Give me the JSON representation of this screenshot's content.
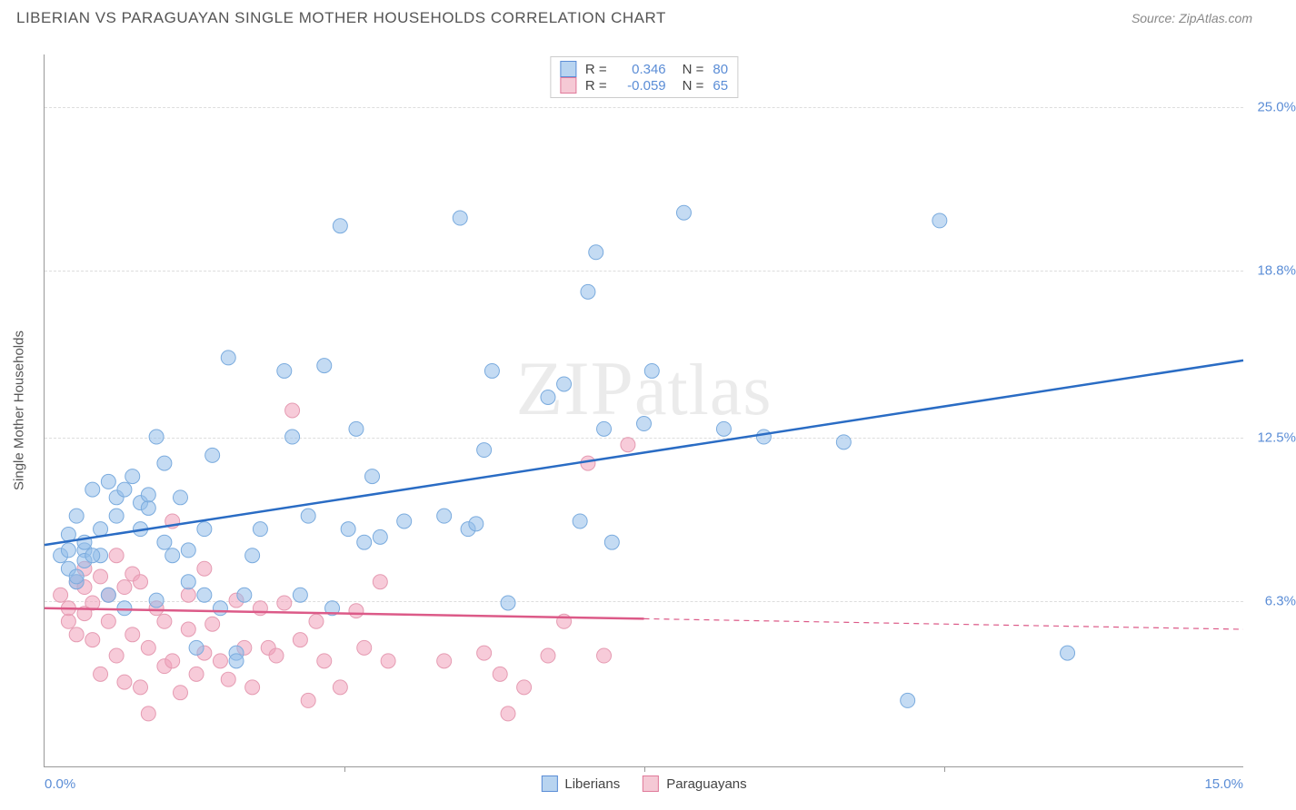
{
  "title": "LIBERIAN VS PARAGUAYAN SINGLE MOTHER HOUSEHOLDS CORRELATION CHART",
  "source_label": "Source: ",
  "source_name": "ZipAtlas.com",
  "y_axis_label": "Single Mother Households",
  "watermark_text": "ZIPatlas",
  "chart": {
    "type": "scatter",
    "background_color": "#ffffff",
    "grid_color": "#dddddd",
    "axis_color": "#999999",
    "tick_label_color": "#5b8dd6",
    "text_color": "#555555",
    "xlim": [
      0.0,
      15.0
    ],
    "ylim": [
      0.0,
      27.0
    ],
    "x_tick_labels": [
      "0.0%",
      "15.0%"
    ],
    "y_ticks": [
      {
        "value": 6.3,
        "label": "6.3%"
      },
      {
        "value": 12.5,
        "label": "12.5%"
      },
      {
        "value": 18.8,
        "label": "18.8%"
      },
      {
        "value": 25.0,
        "label": "25.0%"
      }
    ],
    "x_tick_positions": [
      3.75,
      7.5,
      11.25
    ],
    "marker_radius": 8,
    "marker_opacity": 0.55,
    "line_width_main": 2.5,
    "line_width_dash": 1.2,
    "legend_top": [
      {
        "swatch_fill": "#b8d4f0",
        "swatch_border": "#5b8dd6",
        "r_label": "R =",
        "r_value": "0.346",
        "n_label": "N =",
        "n_value": "80"
      },
      {
        "swatch_fill": "#f5c9d5",
        "swatch_border": "#e07a9a",
        "r_label": "R =",
        "r_value": "-0.059",
        "n_label": "N =",
        "n_value": "65"
      }
    ],
    "legend_bottom": [
      {
        "swatch_fill": "#b8d4f0",
        "swatch_border": "#5b8dd6",
        "label": "Liberians"
      },
      {
        "swatch_fill": "#f5c9d5",
        "swatch_border": "#e07a9a",
        "label": "Paraguayans"
      }
    ],
    "series": [
      {
        "name": "Liberians",
        "color_fill": "rgba(147,190,234,0.55)",
        "color_stroke": "#7aabde",
        "trend_color": "#2a6cc4",
        "trend_solid": {
          "x1": 0.0,
          "y1": 8.4,
          "x2": 15.0,
          "y2": 15.4
        },
        "trend_dash": null,
        "points": [
          [
            0.2,
            8.0
          ],
          [
            0.3,
            8.2
          ],
          [
            0.3,
            7.5
          ],
          [
            0.3,
            8.8
          ],
          [
            0.4,
            7.0
          ],
          [
            0.4,
            9.5
          ],
          [
            0.5,
            8.2
          ],
          [
            0.5,
            7.8
          ],
          [
            0.6,
            10.5
          ],
          [
            0.7,
            8.0
          ],
          [
            0.7,
            9.0
          ],
          [
            0.8,
            6.5
          ],
          [
            0.8,
            10.8
          ],
          [
            0.9,
            10.2
          ],
          [
            0.9,
            9.5
          ],
          [
            1.0,
            10.5
          ],
          [
            1.0,
            6.0
          ],
          [
            1.1,
            11.0
          ],
          [
            1.2,
            9.0
          ],
          [
            1.2,
            10.0
          ],
          [
            1.3,
            9.8
          ],
          [
            1.4,
            12.5
          ],
          [
            1.4,
            6.3
          ],
          [
            1.5,
            8.5
          ],
          [
            1.5,
            11.5
          ],
          [
            1.6,
            8.0
          ],
          [
            1.7,
            10.2
          ],
          [
            1.8,
            7.0
          ],
          [
            1.9,
            4.5
          ],
          [
            2.0,
            9.0
          ],
          [
            2.0,
            6.5
          ],
          [
            2.1,
            11.8
          ],
          [
            2.2,
            6.0
          ],
          [
            2.3,
            15.5
          ],
          [
            2.4,
            4.3
          ],
          [
            2.4,
            4.0
          ],
          [
            2.5,
            6.5
          ],
          [
            2.6,
            8.0
          ],
          [
            2.7,
            9.0
          ],
          [
            3.0,
            15.0
          ],
          [
            3.1,
            12.5
          ],
          [
            3.2,
            6.5
          ],
          [
            3.3,
            9.5
          ],
          [
            3.5,
            15.2
          ],
          [
            3.7,
            20.5
          ],
          [
            3.8,
            9.0
          ],
          [
            3.9,
            12.8
          ],
          [
            4.0,
            8.5
          ],
          [
            4.1,
            11.0
          ],
          [
            4.2,
            8.7
          ],
          [
            4.5,
            9.3
          ],
          [
            5.0,
            9.5
          ],
          [
            5.2,
            20.8
          ],
          [
            5.3,
            9.0
          ],
          [
            5.4,
            9.2
          ],
          [
            5.5,
            12.0
          ],
          [
            5.6,
            15.0
          ],
          [
            5.8,
            6.2
          ],
          [
            6.3,
            14.0
          ],
          [
            6.5,
            14.5
          ],
          [
            6.7,
            9.3
          ],
          [
            6.8,
            18.0
          ],
          [
            6.9,
            19.5
          ],
          [
            7.0,
            12.8
          ],
          [
            7.1,
            8.5
          ],
          [
            7.5,
            13.0
          ],
          [
            7.6,
            15.0
          ],
          [
            8.0,
            21.0
          ],
          [
            8.5,
            12.8
          ],
          [
            9.0,
            12.5
          ],
          [
            10.0,
            12.3
          ],
          [
            10.8,
            2.5
          ],
          [
            11.2,
            20.7
          ],
          [
            12.8,
            4.3
          ],
          [
            0.4,
            7.2
          ],
          [
            0.5,
            8.5
          ],
          [
            0.6,
            8.0
          ],
          [
            1.3,
            10.3
          ],
          [
            1.8,
            8.2
          ],
          [
            3.6,
            6.0
          ]
        ]
      },
      {
        "name": "Paraguayans",
        "color_fill": "rgba(240,160,185,0.55)",
        "color_stroke": "#e59bb2",
        "trend_color": "#dc5a88",
        "trend_solid": {
          "x1": 0.0,
          "y1": 6.0,
          "x2": 7.5,
          "y2": 5.6
        },
        "trend_dash": {
          "x1": 7.5,
          "y1": 5.6,
          "x2": 15.0,
          "y2": 5.2
        },
        "points": [
          [
            0.2,
            6.5
          ],
          [
            0.3,
            5.5
          ],
          [
            0.3,
            6.0
          ],
          [
            0.4,
            7.0
          ],
          [
            0.4,
            5.0
          ],
          [
            0.5,
            6.8
          ],
          [
            0.5,
            5.8
          ],
          [
            0.6,
            6.2
          ],
          [
            0.6,
            4.8
          ],
          [
            0.7,
            7.2
          ],
          [
            0.7,
            3.5
          ],
          [
            0.8,
            5.5
          ],
          [
            0.8,
            6.5
          ],
          [
            0.9,
            4.2
          ],
          [
            0.9,
            8.0
          ],
          [
            1.0,
            3.2
          ],
          [
            1.0,
            6.8
          ],
          [
            1.1,
            5.0
          ],
          [
            1.1,
            7.3
          ],
          [
            1.2,
            3.0
          ],
          [
            1.2,
            7.0
          ],
          [
            1.3,
            4.5
          ],
          [
            1.3,
            2.0
          ],
          [
            1.4,
            6.0
          ],
          [
            1.5,
            3.8
          ],
          [
            1.5,
            5.5
          ],
          [
            1.6,
            4.0
          ],
          [
            1.6,
            9.3
          ],
          [
            1.7,
            2.8
          ],
          [
            1.8,
            5.2
          ],
          [
            1.8,
            6.5
          ],
          [
            1.9,
            3.5
          ],
          [
            2.0,
            7.5
          ],
          [
            2.0,
            4.3
          ],
          [
            2.1,
            5.4
          ],
          [
            2.2,
            4.0
          ],
          [
            2.3,
            3.3
          ],
          [
            2.4,
            6.3
          ],
          [
            2.5,
            4.5
          ],
          [
            2.6,
            3.0
          ],
          [
            2.7,
            6.0
          ],
          [
            2.8,
            4.5
          ],
          [
            2.9,
            4.2
          ],
          [
            3.0,
            6.2
          ],
          [
            3.1,
            13.5
          ],
          [
            3.2,
            4.8
          ],
          [
            3.3,
            2.5
          ],
          [
            3.4,
            5.5
          ],
          [
            3.5,
            4.0
          ],
          [
            3.7,
            3.0
          ],
          [
            3.9,
            5.9
          ],
          [
            4.0,
            4.5
          ],
          [
            4.2,
            7.0
          ],
          [
            4.3,
            4.0
          ],
          [
            5.0,
            4.0
          ],
          [
            5.5,
            4.3
          ],
          [
            5.7,
            3.5
          ],
          [
            5.8,
            2.0
          ],
          [
            6.0,
            3.0
          ],
          [
            6.3,
            4.2
          ],
          [
            6.5,
            5.5
          ],
          [
            6.8,
            11.5
          ],
          [
            7.0,
            4.2
          ],
          [
            7.3,
            12.2
          ],
          [
            0.5,
            7.5
          ]
        ]
      }
    ]
  }
}
